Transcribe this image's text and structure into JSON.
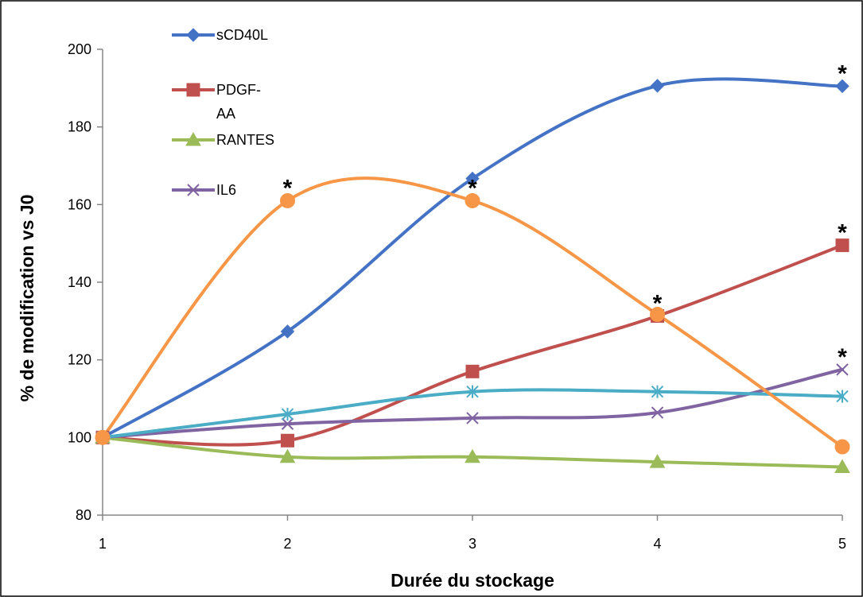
{
  "chart_data": {
    "type": "line",
    "xlabel": "Durée du stockage",
    "ylabel": "% de modification vs J0",
    "x": [
      1,
      2,
      3,
      4,
      5
    ],
    "xlim": [
      1,
      5
    ],
    "ylim": [
      80,
      200
    ],
    "yticks": [
      80,
      100,
      120,
      140,
      160,
      180,
      200
    ],
    "xticks": [
      1,
      2,
      3,
      4,
      5
    ],
    "smooth": true,
    "grid": false,
    "legend_position": "top-left",
    "significance_symbol": "*",
    "series": [
      {
        "name": "sCD40L",
        "values": [
          100,
          127.3,
          166.7,
          190.6,
          190.5
        ],
        "color": "#4472C4",
        "marker": "diamond",
        "significant_at": [
          5
        ]
      },
      {
        "name": "PDGF-AA",
        "values": [
          100,
          99.2,
          117,
          131.3,
          149.5
        ],
        "color": "#C0504D",
        "marker": "square",
        "significant_at": [
          4,
          5
        ]
      },
      {
        "name": "RANTES",
        "values": [
          100,
          95,
          95,
          93.7,
          92.4
        ],
        "color": "#9BBB59",
        "marker": "triangle",
        "significant_at": []
      },
      {
        "name": "IL6",
        "values": [
          100,
          103.5,
          105,
          106.4,
          117.5
        ],
        "color": "#8064A2",
        "marker": "x",
        "significant_at": [
          5
        ]
      },
      {
        "name": "",
        "values": [
          100,
          106,
          111.8,
          111.8,
          110.6
        ],
        "color": "#4BACC6",
        "marker": "star",
        "significant_at": []
      },
      {
        "name": "",
        "values": [
          100,
          161,
          161,
          131.7,
          97.6
        ],
        "color": "#F79646",
        "marker": "circle",
        "significant_at": [
          2,
          3
        ]
      }
    ]
  }
}
